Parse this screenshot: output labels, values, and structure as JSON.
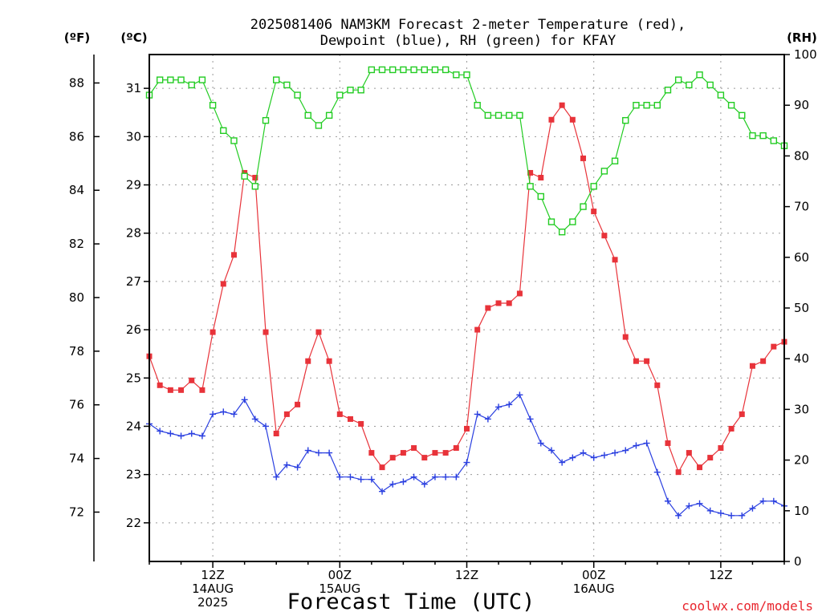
{
  "chart_data": {
    "type": "line",
    "title_line1": "2025081406 NAM3KM Forecast 2-meter Temperature (red),",
    "title_line2": "Dewpoint (blue), RH (green) for KFAY",
    "xlabel": "Forecast Time (UTC)",
    "credit": "coolwx.com/models",
    "units": {
      "fahrenheit": "(ºF)",
      "celsius": "(ºC)",
      "rh": "(RH)"
    },
    "fahrenheit_ticks": [
      "72",
      "74",
      "76",
      "78",
      "80",
      "82",
      "84",
      "86",
      "88"
    ],
    "celsius_ticks": [
      "22",
      "23",
      "24",
      "25",
      "26",
      "27",
      "28",
      "29",
      "30",
      "31"
    ],
    "rh_ticks": [
      "0",
      "10",
      "20",
      "30",
      "40",
      "50",
      "60",
      "70",
      "80",
      "90",
      "100"
    ],
    "celsius_range": [
      21.2,
      31.7
    ],
    "rh_range": [
      0,
      100
    ],
    "grid": true,
    "x_range_hours": [
      6,
      66
    ],
    "x_ticks": [
      {
        "hour": 12,
        "lines": [
          "12Z",
          "14AUG",
          "2025"
        ]
      },
      {
        "hour": 24,
        "lines": [
          "00Z",
          "15AUG"
        ]
      },
      {
        "hour": 36,
        "lines": [
          "12Z"
        ]
      },
      {
        "hour": 48,
        "lines": [
          "00Z",
          "16AUG"
        ]
      },
      {
        "hour": 60,
        "lines": [
          "12Z"
        ]
      }
    ],
    "series": [
      {
        "name": "Temperature",
        "axis": "celsius",
        "marker": "filled-square",
        "color": "#e8333a",
        "x": [
          6,
          7,
          8,
          9,
          10,
          11,
          12,
          13,
          14,
          15,
          16,
          17,
          18,
          19,
          20,
          21,
          22,
          23,
          24,
          25,
          26,
          27,
          28,
          29,
          30,
          31,
          32,
          33,
          34,
          35,
          36,
          37,
          38,
          39,
          40,
          41,
          42,
          43,
          44,
          45,
          46,
          47,
          48,
          49,
          50,
          51,
          52,
          53,
          54,
          55,
          56,
          57,
          58,
          59,
          60,
          61,
          62,
          63,
          64,
          65,
          66
        ],
        "values": [
          25.45,
          24.85,
          24.75,
          24.75,
          24.95,
          24.75,
          25.95,
          26.95,
          27.55,
          29.25,
          29.15,
          25.95,
          23.85,
          24.25,
          24.45,
          25.35,
          25.95,
          25.35,
          24.25,
          24.15,
          24.05,
          23.45,
          23.15,
          23.35,
          23.45,
          23.55,
          23.35,
          23.45,
          23.45,
          23.55,
          23.95,
          26.0,
          26.45,
          26.55,
          26.55,
          26.75,
          29.25,
          29.15,
          30.35,
          30.65,
          30.35,
          29.55,
          28.45,
          27.95,
          27.45,
          25.85,
          25.35,
          25.35,
          24.85,
          23.65,
          23.05,
          23.45,
          23.15,
          23.35,
          23.55,
          23.95,
          24.25,
          25.25,
          25.35,
          25.65,
          25.75
        ]
      },
      {
        "name": "Dewpoint",
        "axis": "celsius",
        "marker": "plus",
        "color": "#2a3fe0",
        "x": [
          6,
          7,
          8,
          9,
          10,
          11,
          12,
          13,
          14,
          15,
          16,
          17,
          18,
          19,
          20,
          21,
          22,
          23,
          24,
          25,
          26,
          27,
          28,
          29,
          30,
          31,
          32,
          33,
          34,
          35,
          36,
          37,
          38,
          39,
          40,
          41,
          42,
          43,
          44,
          45,
          46,
          47,
          48,
          49,
          50,
          51,
          52,
          53,
          54,
          55,
          56,
          57,
          58,
          59,
          60,
          61,
          62,
          63,
          64,
          65,
          66
        ],
        "values": [
          24.05,
          23.9,
          23.85,
          23.8,
          23.85,
          23.8,
          24.25,
          24.3,
          24.25,
          24.55,
          24.15,
          24.0,
          22.95,
          23.2,
          23.15,
          23.5,
          23.45,
          23.45,
          22.95,
          22.95,
          22.9,
          22.9,
          22.65,
          22.8,
          22.85,
          22.95,
          22.8,
          22.95,
          22.95,
          22.95,
          23.25,
          24.25,
          24.15,
          24.4,
          24.45,
          24.65,
          24.15,
          23.65,
          23.5,
          23.25,
          23.35,
          23.45,
          23.35,
          23.4,
          23.45,
          23.5,
          23.6,
          23.65,
          23.05,
          22.45,
          22.15,
          22.35,
          22.4,
          22.25,
          22.2,
          22.15,
          22.15,
          22.3,
          22.45,
          22.45,
          22.35
        ]
      },
      {
        "name": "RH",
        "axis": "rh",
        "marker": "open-square",
        "color": "#22cc22",
        "x": [
          6,
          7,
          8,
          9,
          10,
          11,
          12,
          13,
          14,
          15,
          16,
          17,
          18,
          19,
          20,
          21,
          22,
          23,
          24,
          25,
          26,
          27,
          28,
          29,
          30,
          31,
          32,
          33,
          34,
          35,
          36,
          37,
          38,
          39,
          40,
          41,
          42,
          43,
          44,
          45,
          46,
          47,
          48,
          49,
          50,
          51,
          52,
          53,
          54,
          55,
          56,
          57,
          58,
          59,
          60,
          61,
          62,
          63,
          64,
          65,
          66
        ],
        "values": [
          92,
          95,
          95,
          95,
          94,
          95,
          90,
          85,
          83,
          76,
          74,
          87,
          95,
          94,
          92,
          88,
          86,
          88,
          92,
          93,
          93,
          97,
          97,
          97,
          97,
          97,
          97,
          97,
          97,
          96,
          96,
          90,
          88,
          88,
          88,
          88,
          74,
          72,
          67,
          65,
          67,
          70,
          74,
          77,
          79,
          87,
          90,
          90,
          90,
          93,
          95,
          94,
          96,
          94,
          92,
          90,
          88,
          84,
          84,
          83,
          82
        ]
      }
    ]
  }
}
